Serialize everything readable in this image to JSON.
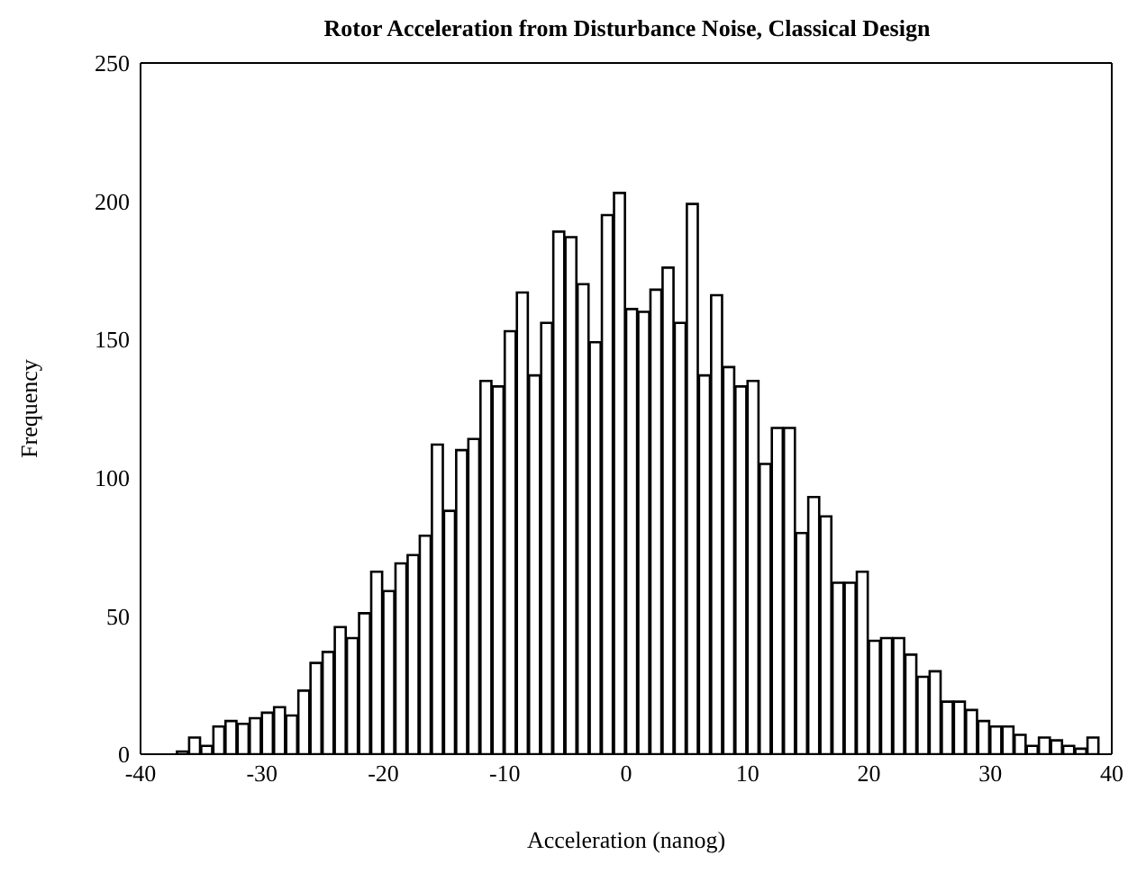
{
  "chart_data": {
    "type": "histogram",
    "title": "Rotor Acceleration from Disturbance Noise, Classical Design",
    "xlabel": "Acceleration (nanog)",
    "ylabel": "Frequency",
    "bins": [
      -40,
      -39,
      -38,
      -37,
      -36,
      -35,
      -34,
      -33,
      -32,
      -31,
      -30,
      -29,
      -28,
      -27,
      -26,
      -25,
      -24,
      -23,
      -22,
      -21,
      -20,
      -19,
      -18,
      -17,
      -16,
      -15,
      -14,
      -13,
      -12,
      -11,
      -10,
      -9,
      -8,
      -7,
      -6,
      -5,
      -4,
      -3,
      -2,
      -1,
      0,
      1,
      2,
      3,
      4,
      5,
      6,
      7,
      8,
      9,
      10,
      11,
      12,
      13,
      14,
      15,
      16,
      17,
      18,
      19,
      20,
      21,
      22,
      23,
      24,
      25,
      26,
      27,
      28,
      29,
      30,
      31,
      32,
      33,
      34,
      35,
      36,
      37,
      38,
      39,
      40
    ],
    "values": [
      0,
      0,
      0,
      1,
      6,
      3,
      10,
      12,
      11,
      13,
      15,
      17,
      14,
      23,
      33,
      37,
      46,
      42,
      51,
      66,
      59,
      69,
      72,
      79,
      112,
      88,
      110,
      114,
      135,
      133,
      153,
      167,
      137,
      156,
      189,
      187,
      170,
      149,
      195,
      203,
      161,
      160,
      168,
      176,
      156,
      199,
      137,
      166,
      140,
      133,
      135,
      105,
      118,
      118,
      80,
      93,
      86,
      62,
      62,
      66,
      41,
      42,
      42,
      36,
      28,
      30,
      19,
      19,
      16,
      12,
      10,
      10,
      7,
      3,
      6,
      5,
      3,
      2,
      6,
      0
    ],
    "color": "#ffffff",
    "xlim": [
      -40,
      40
    ],
    "xticks": [
      -40,
      -30,
      -20,
      -10,
      0,
      10,
      20,
      30,
      40
    ],
    "ylim": [
      0,
      250
    ],
    "yticks": [
      0,
      50,
      100,
      150,
      200,
      250
    ]
  }
}
